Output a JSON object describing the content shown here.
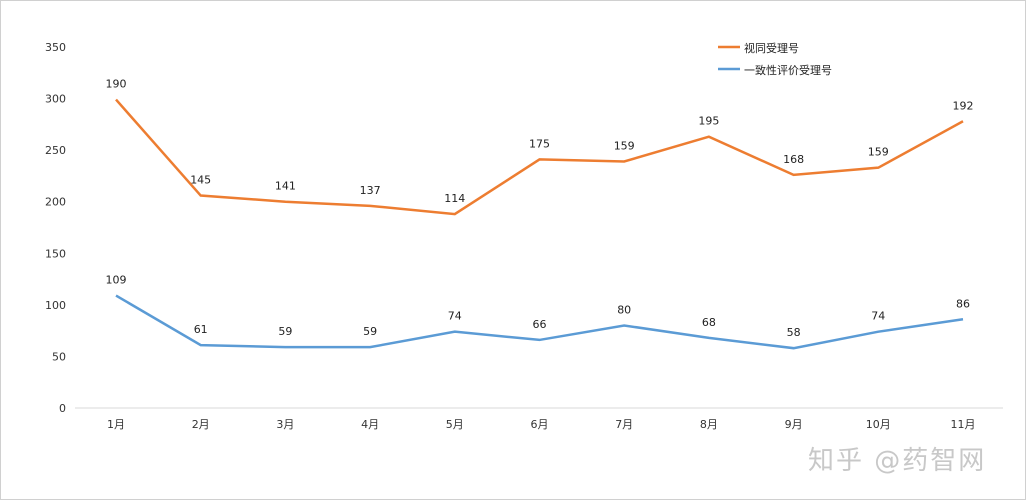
{
  "chart_data": {
    "type": "line",
    "stacked": true,
    "categories": [
      "1月",
      "2月",
      "3月",
      "4月",
      "5月",
      "6月",
      "7月",
      "8月",
      "9月",
      "10月",
      "11月"
    ],
    "series": [
      {
        "name": "一致性评价受理号",
        "color": "#5b9bd5",
        "values": [
          109,
          61,
          59,
          59,
          74,
          66,
          80,
          68,
          58,
          74,
          86
        ]
      },
      {
        "name": "视同受理号",
        "color": "#ed7d31",
        "values": [
          190,
          145,
          141,
          137,
          114,
          175,
          159,
          195,
          168,
          159,
          192
        ]
      }
    ],
    "ylim": [
      0,
      350
    ],
    "yticks": [
      0,
      50,
      100,
      150,
      200,
      250,
      300,
      350
    ],
    "grid": false,
    "legend": "top-right",
    "data_labels": true
  },
  "watermark": "知乎 @药智网"
}
